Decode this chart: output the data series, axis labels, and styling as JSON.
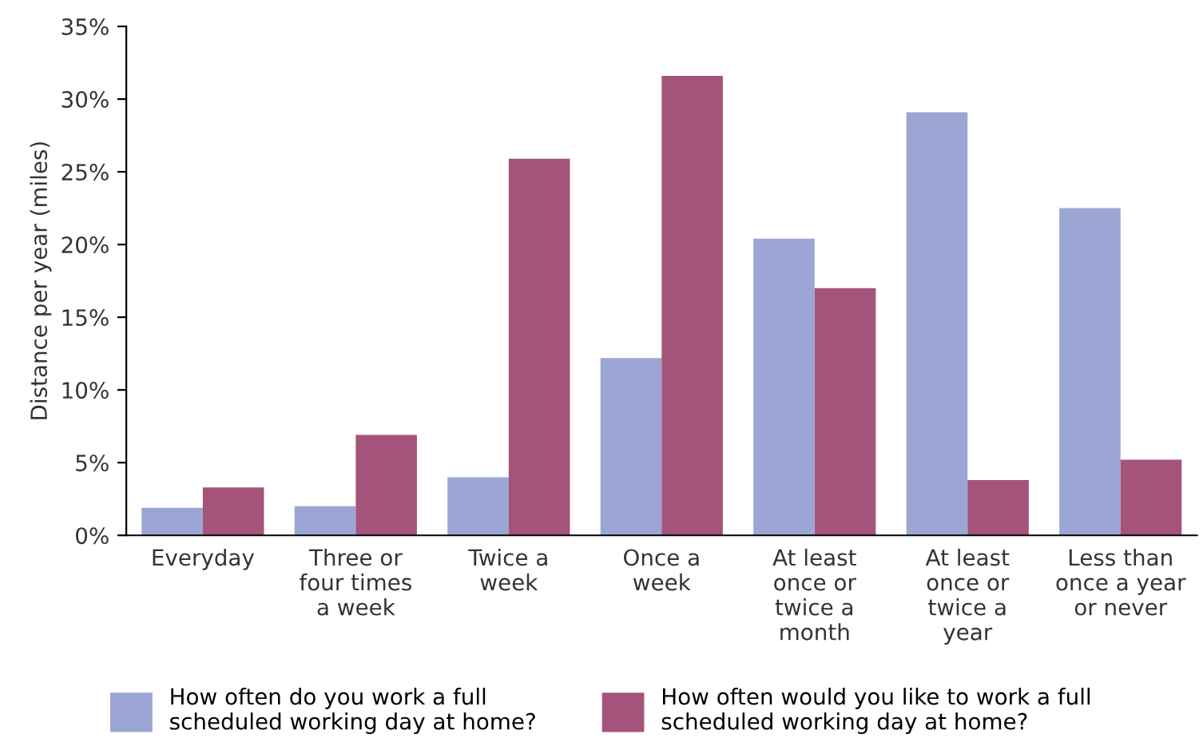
{
  "chart_data": {
    "type": "bar",
    "ylabel": "Distance per year (miles)",
    "categories": [
      "Everyday",
      "Three or\nfour times\na week",
      "Twice a\nweek",
      "Once a\nweek",
      "At least\nonce or\ntwice a\nmonth",
      "At least\nonce or\ntwice a\nyear",
      "Less than\nonce a year\nor never"
    ],
    "series": [
      {
        "name": "How often do you work a full\nscheduled working day at home?",
        "color": "#9ba6d4",
        "values": [
          1.9,
          2.0,
          4.0,
          12.2,
          20.4,
          29.1,
          22.5
        ]
      },
      {
        "name": "How often would you like to work a full\nscheduled working day at home?",
        "color": "#a4547a",
        "values": [
          3.3,
          6.9,
          25.9,
          31.6,
          17.0,
          3.8,
          5.2
        ]
      }
    ],
    "ylim": [
      0,
      35
    ],
    "yticks": [
      {
        "value": 0,
        "label": "0%"
      },
      {
        "value": 5,
        "label": "5%"
      },
      {
        "value": 10,
        "label": "10%"
      },
      {
        "value": 15,
        "label": "15%"
      },
      {
        "value": 20,
        "label": "20%"
      },
      {
        "value": 25,
        "label": "25%"
      },
      {
        "value": 30,
        "label": "30%"
      },
      {
        "value": 35,
        "label": "35%"
      }
    ],
    "grid": false,
    "legend": "bottom"
  }
}
